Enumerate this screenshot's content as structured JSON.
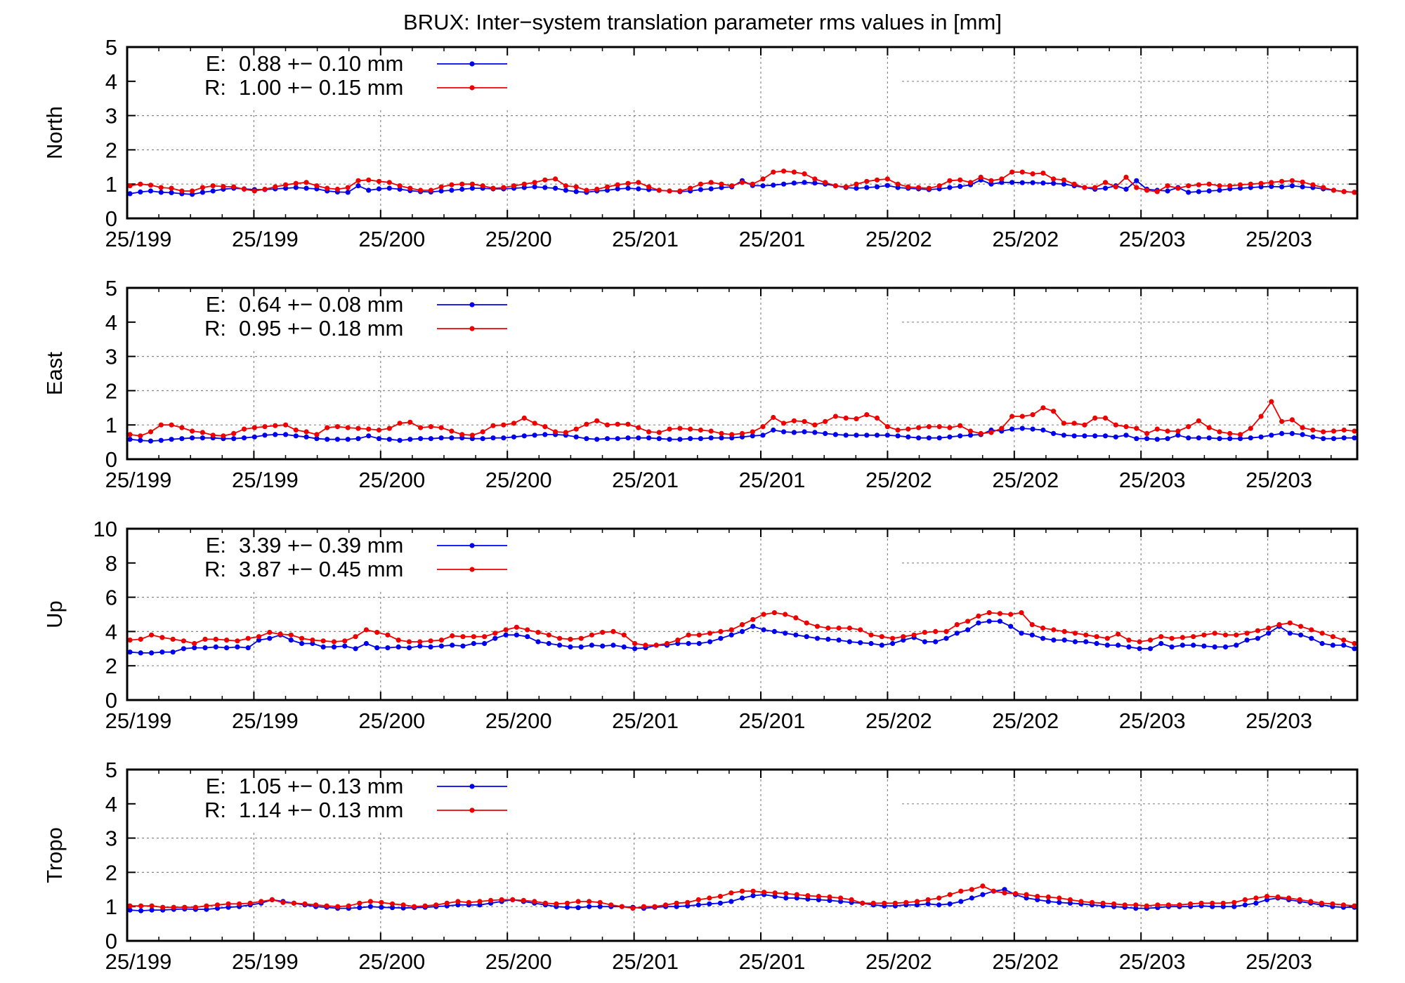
{
  "title": "BRUX: Inter−system translation parameter rms values in [mm]",
  "colors": {
    "E": "#0000ee",
    "R": "#ee0000",
    "grid": "#888888",
    "frame": "#000000"
  },
  "x_tick_labels": [
    "25/199",
    "25/199",
    "25/200",
    "25/200",
    "25/201",
    "25/201",
    "25/202",
    "25/202",
    "25/203",
    "25/203"
  ],
  "chart_data": [
    {
      "type": "line",
      "ylabel": "North",
      "ylim": [
        0,
        5
      ],
      "yticks": [
        0,
        1,
        2,
        3,
        4,
        5
      ],
      "grid": true,
      "legend_position": "top-left",
      "series": [
        {
          "name": "E",
          "label": "E:",
          "stat": "0.88 +− 0.10 mm",
          "values": [
            0.72,
            0.77,
            0.8,
            0.76,
            0.75,
            0.72,
            0.7,
            0.76,
            0.8,
            0.85,
            0.88,
            0.86,
            0.84,
            0.84,
            0.86,
            0.88,
            0.9,
            0.88,
            0.86,
            0.8,
            0.77,
            0.76,
            0.95,
            0.82,
            0.86,
            0.88,
            0.85,
            0.81,
            0.78,
            0.77,
            0.8,
            0.82,
            0.85,
            0.88,
            0.88,
            0.86,
            0.86,
            0.88,
            0.9,
            0.92,
            0.9,
            0.88,
            0.82,
            0.78,
            0.76,
            0.8,
            0.82,
            0.86,
            0.88,
            0.86,
            0.84,
            0.82,
            0.8,
            0.78,
            0.8,
            0.84,
            0.86,
            0.9,
            0.92,
            1.1,
            0.96,
            0.95,
            0.97,
            1.0,
            1.03,
            1.05,
            1.03,
            1.0,
            0.95,
            0.9,
            0.88,
            0.9,
            0.92,
            0.96,
            0.9,
            0.88,
            0.86,
            0.84,
            0.86,
            0.9,
            0.93,
            0.98,
            1.12,
            1.0,
            1.05,
            1.05,
            1.04,
            1.04,
            1.03,
            1.02,
            1.0,
            0.95,
            0.9,
            0.85,
            0.88,
            0.95,
            0.85,
            1.1,
            0.85,
            0.82,
            0.8,
            0.9,
            0.76,
            0.78,
            0.8,
            0.82,
            0.86,
            0.88,
            0.9,
            0.92,
            0.93,
            0.92,
            0.95,
            0.92,
            0.9,
            0.86,
            0.82,
            0.78,
            0.76
          ]
        },
        {
          "name": "R",
          "label": "R:",
          "stat": "1.00 +− 0.15 mm",
          "values": [
            0.95,
            1.0,
            0.97,
            0.9,
            0.88,
            0.8,
            0.8,
            0.9,
            0.95,
            0.93,
            0.92,
            0.85,
            0.8,
            0.85,
            0.92,
            0.98,
            1.02,
            1.05,
            0.95,
            0.88,
            0.85,
            0.9,
            1.1,
            1.12,
            1.08,
            1.05,
            0.95,
            0.88,
            0.82,
            0.82,
            0.92,
            0.98,
            1.0,
            1.0,
            0.95,
            0.88,
            0.9,
            0.95,
            1.0,
            1.05,
            1.12,
            1.15,
            0.95,
            0.92,
            0.82,
            0.85,
            0.92,
            0.98,
            1.02,
            1.05,
            0.92,
            0.82,
            0.8,
            0.8,
            0.88,
            1.0,
            1.05,
            1.0,
            0.95,
            1.05,
            1.0,
            1.15,
            1.35,
            1.38,
            1.35,
            1.3,
            1.15,
            1.05,
            0.95,
            0.92,
            1.0,
            1.08,
            1.12,
            1.15,
            1.0,
            0.92,
            0.9,
            0.88,
            0.95,
            1.1,
            1.12,
            1.05,
            1.2,
            1.1,
            1.15,
            1.35,
            1.35,
            1.3,
            1.32,
            1.15,
            1.12,
            1.0,
            0.9,
            0.9,
            1.05,
            0.92,
            1.2,
            0.9,
            0.82,
            0.78,
            0.95,
            0.88,
            0.95,
            0.98,
            1.0,
            0.95,
            0.95,
            0.98,
            1.0,
            1.02,
            1.05,
            1.08,
            1.1,
            1.06,
            0.98,
            0.9,
            0.82,
            0.78,
            0.76
          ]
        }
      ]
    },
    {
      "type": "line",
      "ylabel": "East",
      "ylim": [
        0,
        5
      ],
      "yticks": [
        0,
        1,
        2,
        3,
        4,
        5
      ],
      "grid": true,
      "legend_position": "top-left",
      "series": [
        {
          "name": "E",
          "label": "E:",
          "stat": "0.64 +− 0.08 mm",
          "values": [
            0.58,
            0.55,
            0.53,
            0.55,
            0.58,
            0.6,
            0.62,
            0.62,
            0.62,
            0.6,
            0.6,
            0.62,
            0.65,
            0.7,
            0.72,
            0.72,
            0.68,
            0.65,
            0.6,
            0.58,
            0.58,
            0.58,
            0.6,
            0.68,
            0.6,
            0.58,
            0.55,
            0.58,
            0.6,
            0.6,
            0.62,
            0.62,
            0.62,
            0.6,
            0.6,
            0.62,
            0.62,
            0.65,
            0.68,
            0.7,
            0.72,
            0.72,
            0.7,
            0.65,
            0.6,
            0.58,
            0.6,
            0.6,
            0.62,
            0.62,
            0.62,
            0.6,
            0.58,
            0.58,
            0.6,
            0.6,
            0.62,
            0.62,
            0.62,
            0.65,
            0.68,
            0.7,
            0.85,
            0.8,
            0.78,
            0.8,
            0.78,
            0.75,
            0.72,
            0.7,
            0.7,
            0.7,
            0.7,
            0.7,
            0.68,
            0.65,
            0.62,
            0.62,
            0.62,
            0.65,
            0.68,
            0.7,
            0.72,
            0.85,
            0.82,
            0.88,
            0.9,
            0.88,
            0.85,
            0.75,
            0.7,
            0.68,
            0.68,
            0.68,
            0.68,
            0.65,
            0.7,
            0.6,
            0.6,
            0.58,
            0.6,
            0.7,
            0.62,
            0.62,
            0.62,
            0.6,
            0.6,
            0.6,
            0.62,
            0.65,
            0.7,
            0.75,
            0.75,
            0.72,
            0.65,
            0.6,
            0.6,
            0.62,
            0.62
          ]
        },
        {
          "name": "R",
          "label": "R:",
          "stat": "0.95 +− 0.18 mm",
          "values": [
            0.72,
            0.68,
            0.8,
            1.0,
            1.0,
            0.92,
            0.82,
            0.78,
            0.7,
            0.68,
            0.75,
            0.88,
            0.92,
            0.95,
            0.98,
            1.0,
            0.85,
            0.8,
            0.72,
            0.92,
            0.95,
            0.92,
            0.9,
            0.88,
            0.85,
            0.9,
            1.05,
            1.08,
            0.92,
            0.95,
            0.92,
            0.82,
            0.72,
            0.7,
            0.8,
            0.98,
            1.0,
            1.05,
            1.2,
            1.05,
            0.95,
            0.8,
            0.78,
            0.88,
            1.02,
            1.12,
            1.0,
            1.02,
            1.02,
            0.92,
            0.8,
            0.78,
            0.88,
            0.9,
            0.88,
            0.85,
            0.82,
            0.75,
            0.72,
            0.75,
            0.8,
            0.95,
            1.22,
            1.05,
            1.12,
            1.1,
            1.0,
            1.1,
            1.25,
            1.2,
            1.18,
            1.3,
            1.2,
            0.95,
            0.85,
            0.88,
            0.92,
            0.95,
            0.95,
            0.92,
            0.98,
            0.82,
            0.75,
            0.78,
            0.9,
            1.25,
            1.25,
            1.3,
            1.5,
            1.4,
            1.05,
            1.05,
            1.0,
            1.2,
            1.2,
            1.0,
            0.95,
            0.9,
            0.75,
            0.88,
            0.82,
            0.82,
            0.95,
            1.12,
            0.92,
            0.8,
            0.75,
            0.72,
            0.9,
            1.25,
            1.68,
            1.1,
            1.15,
            0.92,
            0.85,
            0.8,
            0.82,
            0.85,
            0.82
          ]
        }
      ]
    },
    {
      "type": "line",
      "ylabel": "Up",
      "ylim": [
        0,
        10
      ],
      "yticks": [
        0,
        2,
        4,
        6,
        8,
        10
      ],
      "grid": true,
      "legend_position": "top-left",
      "series": [
        {
          "name": "E",
          "label": "E:",
          "stat": "3.39 +− 0.39 mm",
          "values": [
            2.8,
            2.75,
            2.75,
            2.8,
            2.8,
            3.0,
            3.05,
            3.05,
            3.1,
            3.05,
            3.1,
            3.05,
            3.5,
            3.6,
            3.8,
            3.5,
            3.3,
            3.3,
            3.1,
            3.1,
            3.15,
            3.0,
            3.3,
            3.05,
            3.05,
            3.1,
            3.05,
            3.15,
            3.1,
            3.15,
            3.2,
            3.15,
            3.3,
            3.3,
            3.6,
            3.8,
            3.8,
            3.7,
            3.4,
            3.3,
            3.2,
            3.1,
            3.1,
            3.2,
            3.15,
            3.2,
            3.1,
            3.0,
            3.05,
            3.2,
            3.2,
            3.3,
            3.3,
            3.3,
            3.4,
            3.6,
            3.8,
            4.0,
            4.3,
            4.1,
            4.0,
            3.9,
            3.8,
            3.7,
            3.6,
            3.55,
            3.5,
            3.4,
            3.35,
            3.3,
            3.2,
            3.3,
            3.5,
            3.65,
            3.4,
            3.4,
            3.6,
            3.9,
            4.1,
            4.5,
            4.6,
            4.6,
            4.3,
            3.9,
            3.8,
            3.6,
            3.5,
            3.5,
            3.4,
            3.4,
            3.3,
            3.2,
            3.2,
            3.1,
            3.0,
            3.0,
            3.3,
            3.1,
            3.2,
            3.2,
            3.15,
            3.1,
            3.1,
            3.2,
            3.5,
            3.6,
            3.9,
            4.3,
            3.9,
            3.8,
            3.6,
            3.3,
            3.2,
            3.2,
            3.0
          ]
        },
        {
          "name": "R",
          "label": "R:",
          "stat": "3.87 +− 0.45 mm",
          "values": [
            3.5,
            3.55,
            3.8,
            3.65,
            3.55,
            3.45,
            3.3,
            3.55,
            3.55,
            3.5,
            3.45,
            3.6,
            3.7,
            3.95,
            3.85,
            3.8,
            3.6,
            3.5,
            3.45,
            3.4,
            3.45,
            3.7,
            4.1,
            3.95,
            3.8,
            3.5,
            3.4,
            3.4,
            3.45,
            3.5,
            3.75,
            3.7,
            3.7,
            3.7,
            3.9,
            4.1,
            4.25,
            4.1,
            3.95,
            3.8,
            3.6,
            3.55,
            3.6,
            3.8,
            3.95,
            4.0,
            3.8,
            3.3,
            3.2,
            3.2,
            3.3,
            3.5,
            3.8,
            3.8,
            3.9,
            4.0,
            4.1,
            4.4,
            4.7,
            5.0,
            5.1,
            5.0,
            4.8,
            4.5,
            4.3,
            4.2,
            4.2,
            4.2,
            4.1,
            3.8,
            3.7,
            3.6,
            3.7,
            3.8,
            3.95,
            4.0,
            4.0,
            4.4,
            4.6,
            4.9,
            5.1,
            5.05,
            5.0,
            5.1,
            4.4,
            4.2,
            4.1,
            4.0,
            3.9,
            3.8,
            3.7,
            3.6,
            3.85,
            3.5,
            3.4,
            3.5,
            3.7,
            3.6,
            3.65,
            3.7,
            3.8,
            3.9,
            3.8,
            3.8,
            3.9,
            4.05,
            4.2,
            4.4,
            4.5,
            4.3,
            4.1,
            3.9,
            3.7,
            3.5,
            3.3
          ]
        }
      ]
    },
    {
      "type": "line",
      "ylabel": "Tropo",
      "ylim": [
        0,
        5
      ],
      "yticks": [
        0,
        1,
        2,
        3,
        4,
        5
      ],
      "grid": true,
      "legend_position": "top-left",
      "series": [
        {
          "name": "E",
          "label": "E:",
          "stat": "1.05 +− 0.13 mm",
          "values": [
            0.9,
            0.88,
            0.9,
            0.9,
            0.92,
            0.93,
            0.92,
            0.92,
            0.95,
            0.98,
            1.0,
            1.05,
            1.1,
            1.2,
            1.15,
            1.1,
            1.05,
            1.0,
            0.98,
            0.95,
            0.95,
            0.97,
            1.0,
            0.98,
            0.97,
            0.96,
            0.97,
            0.98,
            1.0,
            1.02,
            1.05,
            1.05,
            1.05,
            1.1,
            1.15,
            1.2,
            1.15,
            1.1,
            1.05,
            1.0,
            0.98,
            0.97,
            1.0,
            1.0,
            1.0,
            1.0,
            0.98,
            0.95,
            0.98,
            1.0,
            1.0,
            1.02,
            1.05,
            1.08,
            1.1,
            1.15,
            1.25,
            1.32,
            1.35,
            1.3,
            1.25,
            1.25,
            1.22,
            1.2,
            1.18,
            1.15,
            1.12,
            1.1,
            1.05,
            1.02,
            1.02,
            1.05,
            1.05,
            1.08,
            1.05,
            1.08,
            1.15,
            1.25,
            1.35,
            1.45,
            1.5,
            1.35,
            1.25,
            1.2,
            1.15,
            1.12,
            1.1,
            1.08,
            1.05,
            1.02,
            1.0,
            0.98,
            0.95,
            0.95,
            0.97,
            1.0,
            1.0,
            1.0,
            1.02,
            1.0,
            1.0,
            1.0,
            1.05,
            1.1,
            1.2,
            1.25,
            1.2,
            1.15,
            1.1,
            1.05,
            1.0,
            0.98,
            0.98
          ]
        },
        {
          "name": "R",
          "label": "R:",
          "stat": "1.14 +− 0.13 mm",
          "values": [
            1.02,
            1.02,
            1.02,
            0.98,
            0.98,
            0.98,
            0.98,
            1.02,
            1.05,
            1.08,
            1.08,
            1.1,
            1.15,
            1.2,
            1.12,
            1.1,
            1.08,
            1.05,
            1.02,
            1.0,
            1.02,
            1.1,
            1.15,
            1.12,
            1.08,
            1.05,
            1.0,
            1.02,
            1.05,
            1.1,
            1.15,
            1.12,
            1.15,
            1.18,
            1.2,
            1.2,
            1.18,
            1.15,
            1.1,
            1.08,
            1.1,
            1.15,
            1.15,
            1.12,
            1.05,
            1.0,
            0.95,
            1.0,
            1.0,
            1.05,
            1.1,
            1.12,
            1.2,
            1.25,
            1.3,
            1.4,
            1.45,
            1.45,
            1.42,
            1.4,
            1.38,
            1.35,
            1.32,
            1.3,
            1.28,
            1.25,
            1.2,
            1.1,
            1.1,
            1.1,
            1.1,
            1.12,
            1.15,
            1.2,
            1.25,
            1.35,
            1.45,
            1.5,
            1.6,
            1.45,
            1.4,
            1.38,
            1.35,
            1.3,
            1.28,
            1.25,
            1.2,
            1.15,
            1.12,
            1.1,
            1.08,
            1.05,
            1.05,
            1.02,
            1.05,
            1.05,
            1.05,
            1.08,
            1.1,
            1.1,
            1.1,
            1.12,
            1.2,
            1.25,
            1.3,
            1.28,
            1.25,
            1.2,
            1.15,
            1.1,
            1.08,
            1.05,
            1.02
          ]
        }
      ]
    }
  ]
}
